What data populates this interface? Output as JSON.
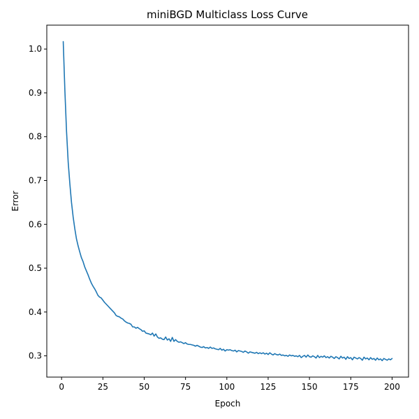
{
  "chart_data": {
    "type": "line",
    "title": "miniBGD Multiclass Loss Curve",
    "xlabel": "Epoch",
    "ylabel": "Error",
    "xlim": [
      -8.95,
      209.95
    ],
    "ylim": [
      0.2515,
      1.0545
    ],
    "x_ticks": [
      0,
      25,
      50,
      75,
      100,
      125,
      150,
      175,
      200
    ],
    "y_ticks": [
      0.3,
      0.4,
      0.5,
      0.6,
      0.7,
      0.8,
      0.9,
      1.0
    ],
    "y_tick_labels": [
      "0.3",
      "0.4",
      "0.5",
      "0.6",
      "0.7",
      "0.8",
      "0.9",
      "1.0"
    ],
    "grid": false,
    "legend": "none",
    "line_color": "#1f77b4",
    "series": [
      {
        "x_start": 1,
        "x_step": 1,
        "values": [
          1.017,
          0.905,
          0.812,
          0.742,
          0.693,
          0.65,
          0.617,
          0.59,
          0.567,
          0.551,
          0.537,
          0.524,
          0.515,
          0.503,
          0.494,
          0.485,
          0.475,
          0.466,
          0.459,
          0.453,
          0.446,
          0.438,
          0.434,
          0.432,
          0.427,
          0.422,
          0.418,
          0.414,
          0.41,
          0.406,
          0.402,
          0.398,
          0.392,
          0.39,
          0.389,
          0.386,
          0.384,
          0.38,
          0.377,
          0.375,
          0.374,
          0.372,
          0.366,
          0.366,
          0.363,
          0.365,
          0.362,
          0.36,
          0.356,
          0.357,
          0.352,
          0.351,
          0.35,
          0.348,
          0.352,
          0.345,
          0.35,
          0.343,
          0.34,
          0.341,
          0.338,
          0.337,
          0.343,
          0.336,
          0.339,
          0.333,
          0.342,
          0.333,
          0.337,
          0.333,
          0.331,
          0.332,
          0.33,
          0.328,
          0.33,
          0.327,
          0.326,
          0.326,
          0.325,
          0.324,
          0.322,
          0.324,
          0.322,
          0.32,
          0.319,
          0.321,
          0.318,
          0.319,
          0.317,
          0.32,
          0.317,
          0.318,
          0.316,
          0.315,
          0.314,
          0.317,
          0.313,
          0.315,
          0.311,
          0.314,
          0.313,
          0.314,
          0.312,
          0.311,
          0.313,
          0.309,
          0.312,
          0.311,
          0.31,
          0.308,
          0.311,
          0.309,
          0.306,
          0.309,
          0.308,
          0.307,
          0.306,
          0.308,
          0.305,
          0.307,
          0.305,
          0.307,
          0.304,
          0.306,
          0.303,
          0.307,
          0.304,
          0.302,
          0.305,
          0.303,
          0.302,
          0.304,
          0.301,
          0.302,
          0.3,
          0.301,
          0.299,
          0.302,
          0.3,
          0.301,
          0.299,
          0.3,
          0.298,
          0.301,
          0.296,
          0.299,
          0.301,
          0.297,
          0.302,
          0.298,
          0.297,
          0.3,
          0.298,
          0.295,
          0.301,
          0.296,
          0.299,
          0.297,
          0.3,
          0.296,
          0.298,
          0.295,
          0.299,
          0.297,
          0.294,
          0.298,
          0.296,
          0.293,
          0.299,
          0.295,
          0.297,
          0.292,
          0.298,
          0.294,
          0.296,
          0.291,
          0.297,
          0.295,
          0.293,
          0.296,
          0.294,
          0.29,
          0.297,
          0.293,
          0.295,
          0.291,
          0.296,
          0.292,
          0.294,
          0.29,
          0.295,
          0.291,
          0.293,
          0.289,
          0.294,
          0.292,
          0.29,
          0.293,
          0.291,
          0.294
        ]
      }
    ]
  }
}
